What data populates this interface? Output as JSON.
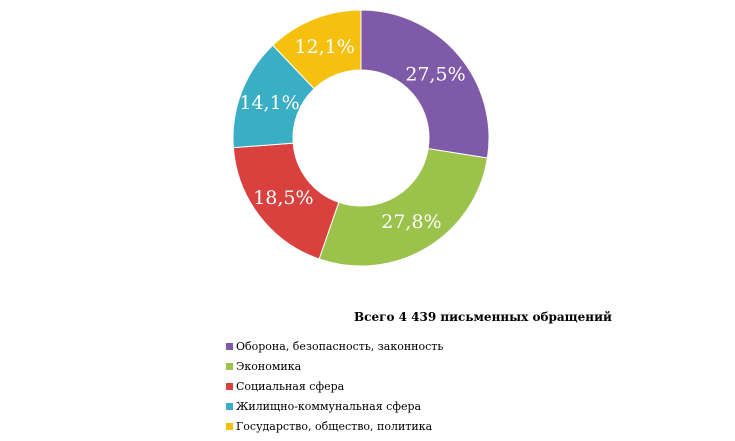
{
  "chart_data": {
    "type": "pie",
    "subtype": "doughnut",
    "title": "Всего 4 439 письменных обращений",
    "legend_position": "bottom",
    "slices": [
      {
        "name": "Оборона, безопасность, законность",
        "value": 27.5,
        "label": "27,5%",
        "color": "#7f5aa8"
      },
      {
        "name": "Экономика",
        "value": 27.8,
        "label": "27,8%",
        "color": "#9bc24a"
      },
      {
        "name": "Социальная сфера",
        "value": 18.5,
        "label": "18,5%",
        "color": "#d9413f"
      },
      {
        "name": "Жилищно-коммунальная сфера",
        "value": 14.1,
        "label": "14,1%",
        "color": "#3aaec4"
      },
      {
        "name": "Государство, общество, политика",
        "value": 12.1,
        "label": "12,1%",
        "color": "#f5c10e"
      }
    ]
  }
}
